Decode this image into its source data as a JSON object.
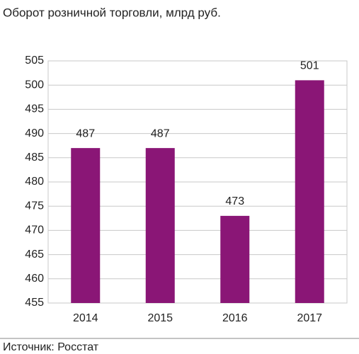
{
  "chart_data": {
    "type": "bar",
    "title": "Оборот розничной торговли, млрд руб.",
    "categories": [
      "2014",
      "2015",
      "2016",
      "2017"
    ],
    "values": [
      487,
      487,
      473,
      501
    ],
    "color": "#8a1676",
    "ylim": [
      455,
      505
    ],
    "yticks": [
      455,
      460,
      465,
      470,
      475,
      480,
      485,
      490,
      495,
      500,
      505
    ],
    "grid": true,
    "source": "Источник: Росстат"
  }
}
